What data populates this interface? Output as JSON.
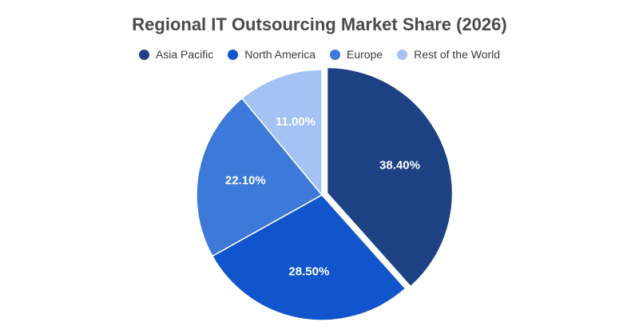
{
  "chart_data": {
    "type": "pie",
    "title": "Regional IT Outsourcing Market Share (2026)",
    "legend_position": "top-center",
    "categories": [
      "Asia Pacific",
      "North America",
      "Europe",
      "Rest of the World"
    ],
    "values": [
      38.4,
      28.5,
      22.1,
      11.0
    ],
    "labels": [
      "38.40%",
      "28.50%",
      "22.10%",
      "11.00%"
    ],
    "colors": [
      "#1c4284",
      "#1155cc",
      "#3d79d8",
      "#a4c2f4"
    ],
    "exploded_slice": "Asia Pacific"
  }
}
